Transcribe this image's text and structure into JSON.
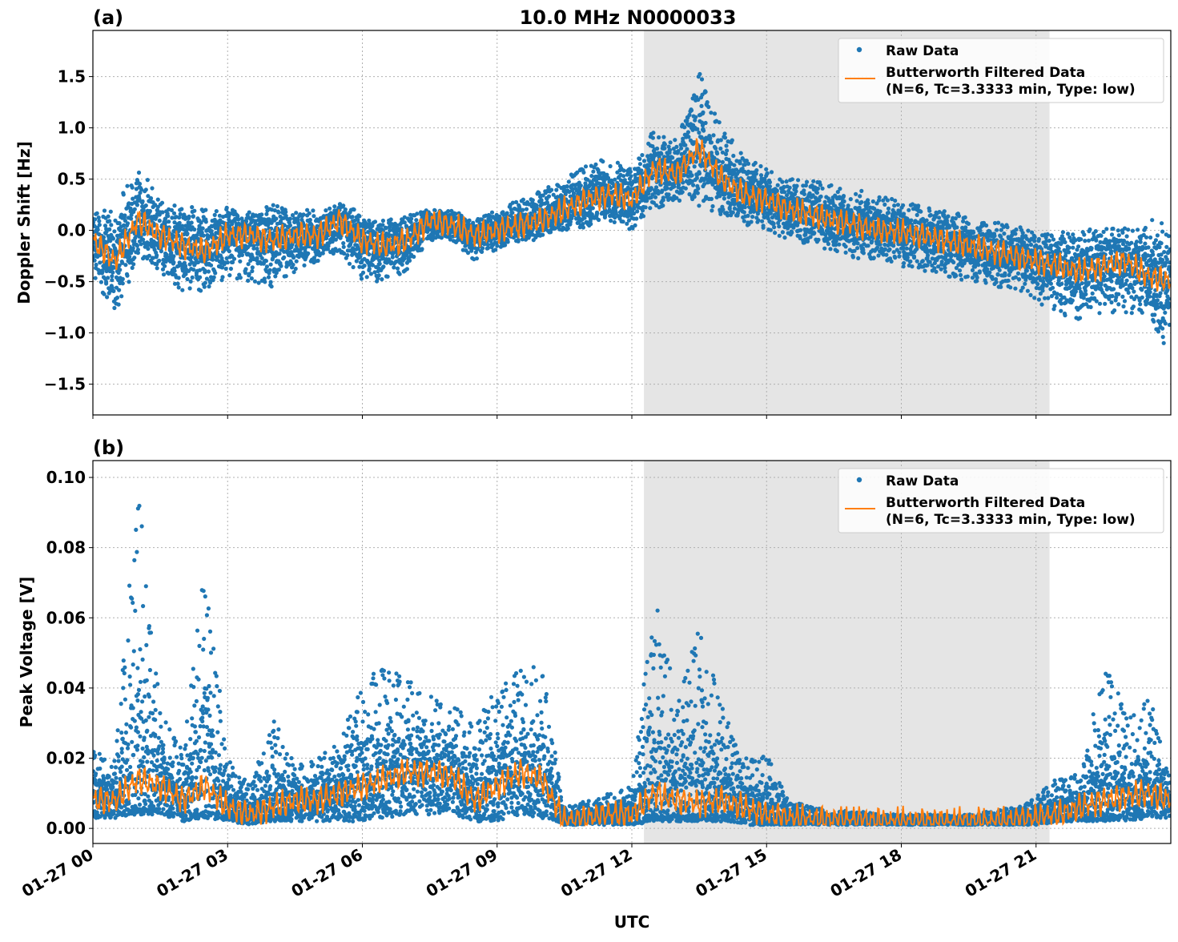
{
  "title": "10.0 MHz N0000033",
  "xlabel": "UTC",
  "colors": {
    "raw": "#1f77b4",
    "filtered": "#ff7f0e",
    "shade": "#e5e5e5",
    "grid": "#b0b0b0"
  },
  "legend": {
    "raw": "Raw Data",
    "filtered_line1": "Butterworth Filtered Data",
    "filtered_line2": "(N=6, Tc=3.3333 min, Type: low)",
    "placement": "top-right"
  },
  "x_ticks": [
    "01-27 00",
    "01-27 03",
    "01-27 06",
    "01-27 09",
    "01-27 12",
    "01-27 15",
    "01-27 18",
    "01-27 21"
  ],
  "chart_data": [
    {
      "type": "scatter",
      "panel_label": "(a)",
      "ylabel": "Doppler Shift [Hz]",
      "x_unit": "hours UTC on 01-27",
      "xlim": [
        0,
        24
      ],
      "ylim": [
        -1.8,
        1.95
      ],
      "y_ticks": [
        "−1.5",
        "−1.0",
        "−0.5",
        "0.0",
        "0.5",
        "1.0",
        "1.5"
      ],
      "y_tick_values": [
        -1.5,
        -1.0,
        -0.5,
        0.0,
        0.5,
        1.0,
        1.5
      ],
      "grid": true,
      "shaded_interval_hours": [
        12.27,
        21.3
      ],
      "x": [
        0,
        0.5,
        1,
        1.5,
        2,
        2.5,
        3,
        3.5,
        4,
        4.5,
        5,
        5.5,
        6,
        6.5,
        7,
        7.5,
        8,
        8.5,
        9,
        9.5,
        10,
        10.5,
        11,
        11.5,
        12,
        12.5,
        13,
        13.5,
        14,
        14.5,
        15,
        15.5,
        16,
        16.5,
        17,
        17.5,
        18,
        18.5,
        19,
        19.5,
        20,
        20.5,
        21,
        21.5,
        22,
        22.5,
        23,
        23.5,
        24
      ],
      "series": [
        {
          "name": "Butterworth Filtered Data",
          "values": [
            -0.1,
            -0.3,
            0.1,
            -0.05,
            -0.15,
            -0.2,
            -0.05,
            -0.05,
            -0.1,
            -0.05,
            -0.05,
            0.1,
            -0.1,
            -0.15,
            -0.1,
            0.1,
            0.05,
            -0.05,
            0.0,
            0.05,
            0.1,
            0.2,
            0.3,
            0.35,
            0.3,
            0.6,
            0.55,
            0.8,
            0.5,
            0.35,
            0.3,
            0.2,
            0.15,
            0.1,
            0.05,
            0.0,
            -0.02,
            -0.05,
            -0.1,
            -0.15,
            -0.2,
            -0.25,
            -0.3,
            -0.35,
            -0.4,
            -0.35,
            -0.3,
            -0.45,
            -0.5
          ]
        },
        {
          "name": "Raw Data",
          "low": [
            -0.5,
            -0.8,
            -0.3,
            -0.4,
            -0.6,
            -0.6,
            -0.5,
            -0.5,
            -0.6,
            -0.4,
            -0.3,
            -0.2,
            -0.5,
            -0.5,
            -0.4,
            -0.1,
            -0.1,
            -0.3,
            -0.2,
            -0.1,
            -0.05,
            0.0,
            0.05,
            0.1,
            0.0,
            0.2,
            0.3,
            0.3,
            0.15,
            0.05,
            0.0,
            -0.1,
            -0.15,
            -0.2,
            -0.3,
            -0.3,
            -0.35,
            -0.4,
            -0.45,
            -0.5,
            -0.55,
            -0.6,
            -0.7,
            -0.8,
            -0.9,
            -0.8,
            -0.8,
            -0.9,
            -1.2
          ],
          "high": [
            0.2,
            0.2,
            0.7,
            0.3,
            0.25,
            0.2,
            0.2,
            0.15,
            0.25,
            0.2,
            0.2,
            0.25,
            0.15,
            0.1,
            0.15,
            0.2,
            0.2,
            0.1,
            0.2,
            0.3,
            0.4,
            0.5,
            0.7,
            0.7,
            0.6,
            1.0,
            0.9,
            1.6,
            1.0,
            0.75,
            0.6,
            0.5,
            0.5,
            0.45,
            0.4,
            0.35,
            0.3,
            0.25,
            0.2,
            0.15,
            0.1,
            0.05,
            0.0,
            -0.05,
            0.0,
            0.05,
            0.0,
            0.1,
            0.15
          ]
        }
      ]
    },
    {
      "type": "scatter",
      "panel_label": "(b)",
      "ylabel": "Peak Voltage [V]",
      "x_unit": "hours UTC on 01-27",
      "xlim": [
        0,
        24
      ],
      "ylim": [
        -0.0043,
        0.1048
      ],
      "y_ticks": [
        "0.00",
        "0.02",
        "0.04",
        "0.06",
        "0.08",
        "0.10"
      ],
      "y_tick_values": [
        0,
        0.02,
        0.04,
        0.06,
        0.08,
        0.1
      ],
      "grid": true,
      "shaded_interval_hours": [
        12.27,
        21.3
      ],
      "x": [
        0,
        0.5,
        1,
        1.5,
        2,
        2.5,
        3,
        3.5,
        4,
        4.5,
        5,
        5.5,
        6,
        6.5,
        7,
        7.5,
        8,
        8.5,
        9,
        9.5,
        10,
        10.5,
        11,
        11.5,
        12,
        12.5,
        13,
        13.5,
        14,
        14.5,
        15,
        15.5,
        16,
        16.5,
        17,
        17.5,
        18,
        18.5,
        19,
        19.5,
        20,
        20.5,
        21,
        21.5,
        22,
        22.5,
        23,
        23.5,
        24
      ],
      "series": [
        {
          "name": "Butterworth Filtered Data",
          "values": [
            0.008,
            0.008,
            0.014,
            0.012,
            0.008,
            0.012,
            0.006,
            0.004,
            0.006,
            0.008,
            0.008,
            0.01,
            0.012,
            0.014,
            0.016,
            0.016,
            0.015,
            0.008,
            0.012,
            0.016,
            0.014,
            0.002,
            0.003,
            0.004,
            0.004,
            0.01,
            0.008,
            0.007,
            0.008,
            0.006,
            0.004,
            0.003,
            0.0025,
            0.0025,
            0.0025,
            0.002,
            0.002,
            0.002,
            0.002,
            0.002,
            0.002,
            0.0025,
            0.003,
            0.004,
            0.006,
            0.008,
            0.009,
            0.01,
            0.008
          ]
        },
        {
          "name": "Raw Data",
          "low": [
            0.003,
            0.003,
            0.004,
            0.004,
            0.002,
            0.003,
            0.002,
            0.001,
            0.002,
            0.002,
            0.002,
            0.002,
            0.002,
            0.003,
            0.004,
            0.004,
            0.004,
            0.002,
            0.002,
            0.004,
            0.003,
            0.001,
            0.001,
            0.001,
            0.001,
            0.002,
            0.002,
            0.002,
            0.002,
            0.001,
            0.001,
            0.001,
            0.001,
            0.001,
            0.001,
            0.001,
            0.001,
            0.001,
            0.001,
            0.001,
            0.001,
            0.001,
            0.001,
            0.002,
            0.002,
            0.002,
            0.002,
            0.003,
            0.003
          ],
          "high": [
            0.022,
            0.02,
            0.1,
            0.034,
            0.022,
            0.077,
            0.02,
            0.012,
            0.032,
            0.018,
            0.02,
            0.025,
            0.044,
            0.047,
            0.043,
            0.038,
            0.036,
            0.03,
            0.04,
            0.045,
            0.048,
            0.006,
            0.008,
            0.01,
            0.012,
            0.067,
            0.038,
            0.058,
            0.035,
            0.02,
            0.021,
            0.008,
            0.006,
            0.005,
            0.005,
            0.004,
            0.004,
            0.004,
            0.004,
            0.004,
            0.005,
            0.006,
            0.009,
            0.015,
            0.016,
            0.047,
            0.034,
            0.039,
            0.015
          ]
        }
      ]
    }
  ]
}
